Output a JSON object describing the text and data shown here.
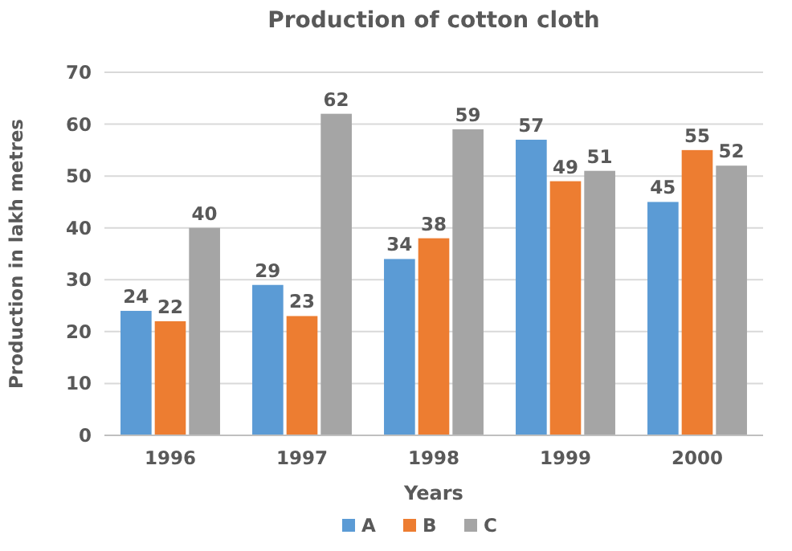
{
  "chart_data": {
    "type": "bar",
    "title": "Production of cotton cloth",
    "xlabel": "Years",
    "ylabel": "Production in lakh metres",
    "categories": [
      "1996",
      "1997",
      "1998",
      "1999",
      "2000"
    ],
    "series": [
      {
        "name": "A",
        "color": "#5b9bd5",
        "values": [
          24,
          29,
          34,
          57,
          45
        ]
      },
      {
        "name": "B",
        "color": "#ed7d31",
        "values": [
          22,
          23,
          38,
          49,
          55
        ]
      },
      {
        "name": "C",
        "color": "#a5a5a5",
        "values": [
          40,
          62,
          59,
          51,
          52
        ]
      }
    ],
    "ylim": [
      0,
      70
    ],
    "yticks": [
      0,
      10,
      20,
      30,
      40,
      50,
      60,
      70
    ],
    "grid": "y",
    "legend": "bottom",
    "data_labels": true
  }
}
